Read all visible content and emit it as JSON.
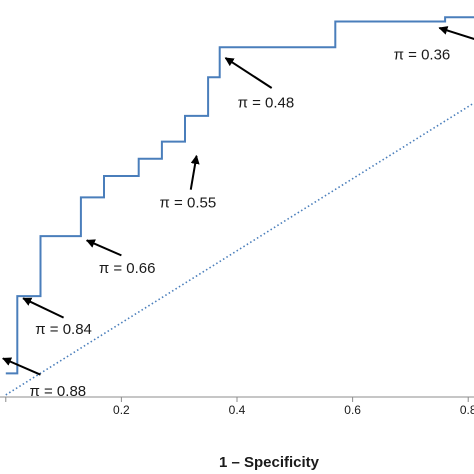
{
  "chart_data": {
    "type": "line",
    "xlabel": "1 – Specificity",
    "ylabel": "",
    "xlim": [
      -0.01,
      0.81
    ],
    "ylim": [
      0.115,
      1.04
    ],
    "x_ticks": [
      {
        "value": 0.2,
        "label": "0.2"
      },
      {
        "value": 0.4,
        "label": "0.4"
      },
      {
        "value": 0.6,
        "label": "0.6"
      },
      {
        "value": 0.8,
        "label": "0.8"
      }
    ],
    "grid": false,
    "legend": "none",
    "series": [
      {
        "style": "solid",
        "color": "#4a7ebb",
        "points": [
          [
            0.0,
            0.17
          ],
          [
            0.02,
            0.17
          ],
          [
            0.02,
            0.35
          ],
          [
            0.06,
            0.35
          ],
          [
            0.06,
            0.49
          ],
          [
            0.13,
            0.49
          ],
          [
            0.13,
            0.58
          ],
          [
            0.17,
            0.58
          ],
          [
            0.17,
            0.63
          ],
          [
            0.23,
            0.63
          ],
          [
            0.23,
            0.67
          ],
          [
            0.27,
            0.67
          ],
          [
            0.27,
            0.71
          ],
          [
            0.31,
            0.71
          ],
          [
            0.31,
            0.77
          ],
          [
            0.35,
            0.77
          ],
          [
            0.35,
            0.86
          ],
          [
            0.37,
            0.86
          ],
          [
            0.37,
            0.93
          ],
          [
            0.57,
            0.93
          ],
          [
            0.57,
            0.99
          ],
          [
            0.76,
            0.99
          ],
          [
            0.76,
            1.0
          ],
          [
            0.81,
            1.0
          ]
        ]
      },
      {
        "style": "dotted",
        "color": "#4a7ebb",
        "points": [
          [
            0.0,
            0.12
          ],
          [
            0.81,
            0.8
          ]
        ]
      }
    ],
    "annotations": [
      {
        "text": "π = 0.88",
        "label_at": [
          0.09,
          0.117
        ],
        "arrow_from": [
          0.06,
          0.167
        ],
        "arrow_to": [
          -0.005,
          0.205
        ]
      },
      {
        "text": "π = 0.84",
        "label_at": [
          0.1,
          0.262
        ],
        "arrow_from": [
          0.1,
          0.3
        ],
        "arrow_to": [
          0.03,
          0.345
        ]
      },
      {
        "text": "π = 0.66",
        "label_at": [
          0.21,
          0.404
        ],
        "arrow_from": [
          0.2,
          0.445
        ],
        "arrow_to": [
          0.14,
          0.48
        ]
      },
      {
        "text": "π = 0.55",
        "label_at": [
          0.315,
          0.556
        ],
        "arrow_from": [
          0.32,
          0.598
        ],
        "arrow_to": [
          0.33,
          0.677
        ]
      },
      {
        "text": "π = 0.48",
        "label_at": [
          0.45,
          0.79
        ],
        "arrow_from": [
          0.46,
          0.835
        ],
        "arrow_to": [
          0.38,
          0.905
        ]
      },
      {
        "text": "π = 0.36",
        "label_at": [
          0.72,
          0.901
        ],
        "arrow_from": [
          null,
          null
        ],
        "arrow_to": [
          0.75,
          0.975
        ]
      }
    ]
  }
}
